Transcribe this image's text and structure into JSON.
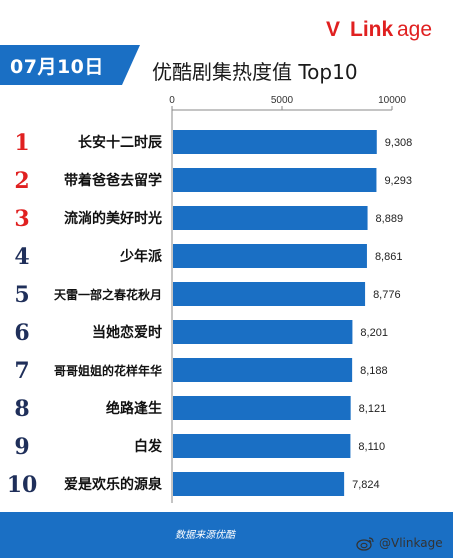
{
  "header": {
    "date": "07月10日",
    "title": "优酷剧集热度值 Top10",
    "logo": {
      "v": "V",
      "mid": "Link",
      "age": "age"
    }
  },
  "footer": {
    "source": "数据来源优酷",
    "watermark": "@Vlinkage"
  },
  "colors": {
    "bar": "#1a6fc4",
    "rank_top3": "#e02020",
    "rank_rest": "#1f2f5a",
    "footer": "#1a6fc4"
  },
  "chart_data": {
    "type": "bar",
    "orientation": "horizontal",
    "ranks": [
      "1",
      "2",
      "3",
      "4",
      "5",
      "6",
      "7",
      "8",
      "9",
      "10"
    ],
    "categories": [
      "长安十二时辰",
      "带着爸爸去留学",
      "流淌的美好时光",
      "少年派",
      "天雷一部之春花秋月",
      "当她恋爱时",
      "哥哥姐姐的花样年华",
      "绝路逢生",
      "白发",
      "爱是欢乐的源泉"
    ],
    "values": [
      9308,
      9293,
      8889,
      8861,
      8776,
      8201,
      8188,
      8121,
      8110,
      7824
    ],
    "value_labels": [
      "9,308",
      "9,293",
      "8,889",
      "8,861",
      "8,776",
      "8,201",
      "8,188",
      "8,121",
      "8,110",
      "7,824"
    ],
    "xlim": [
      0,
      10000
    ],
    "ticks": [
      0,
      5000,
      10000
    ],
    "tick_labels": [
      "0",
      "5000",
      "10000"
    ]
  }
}
